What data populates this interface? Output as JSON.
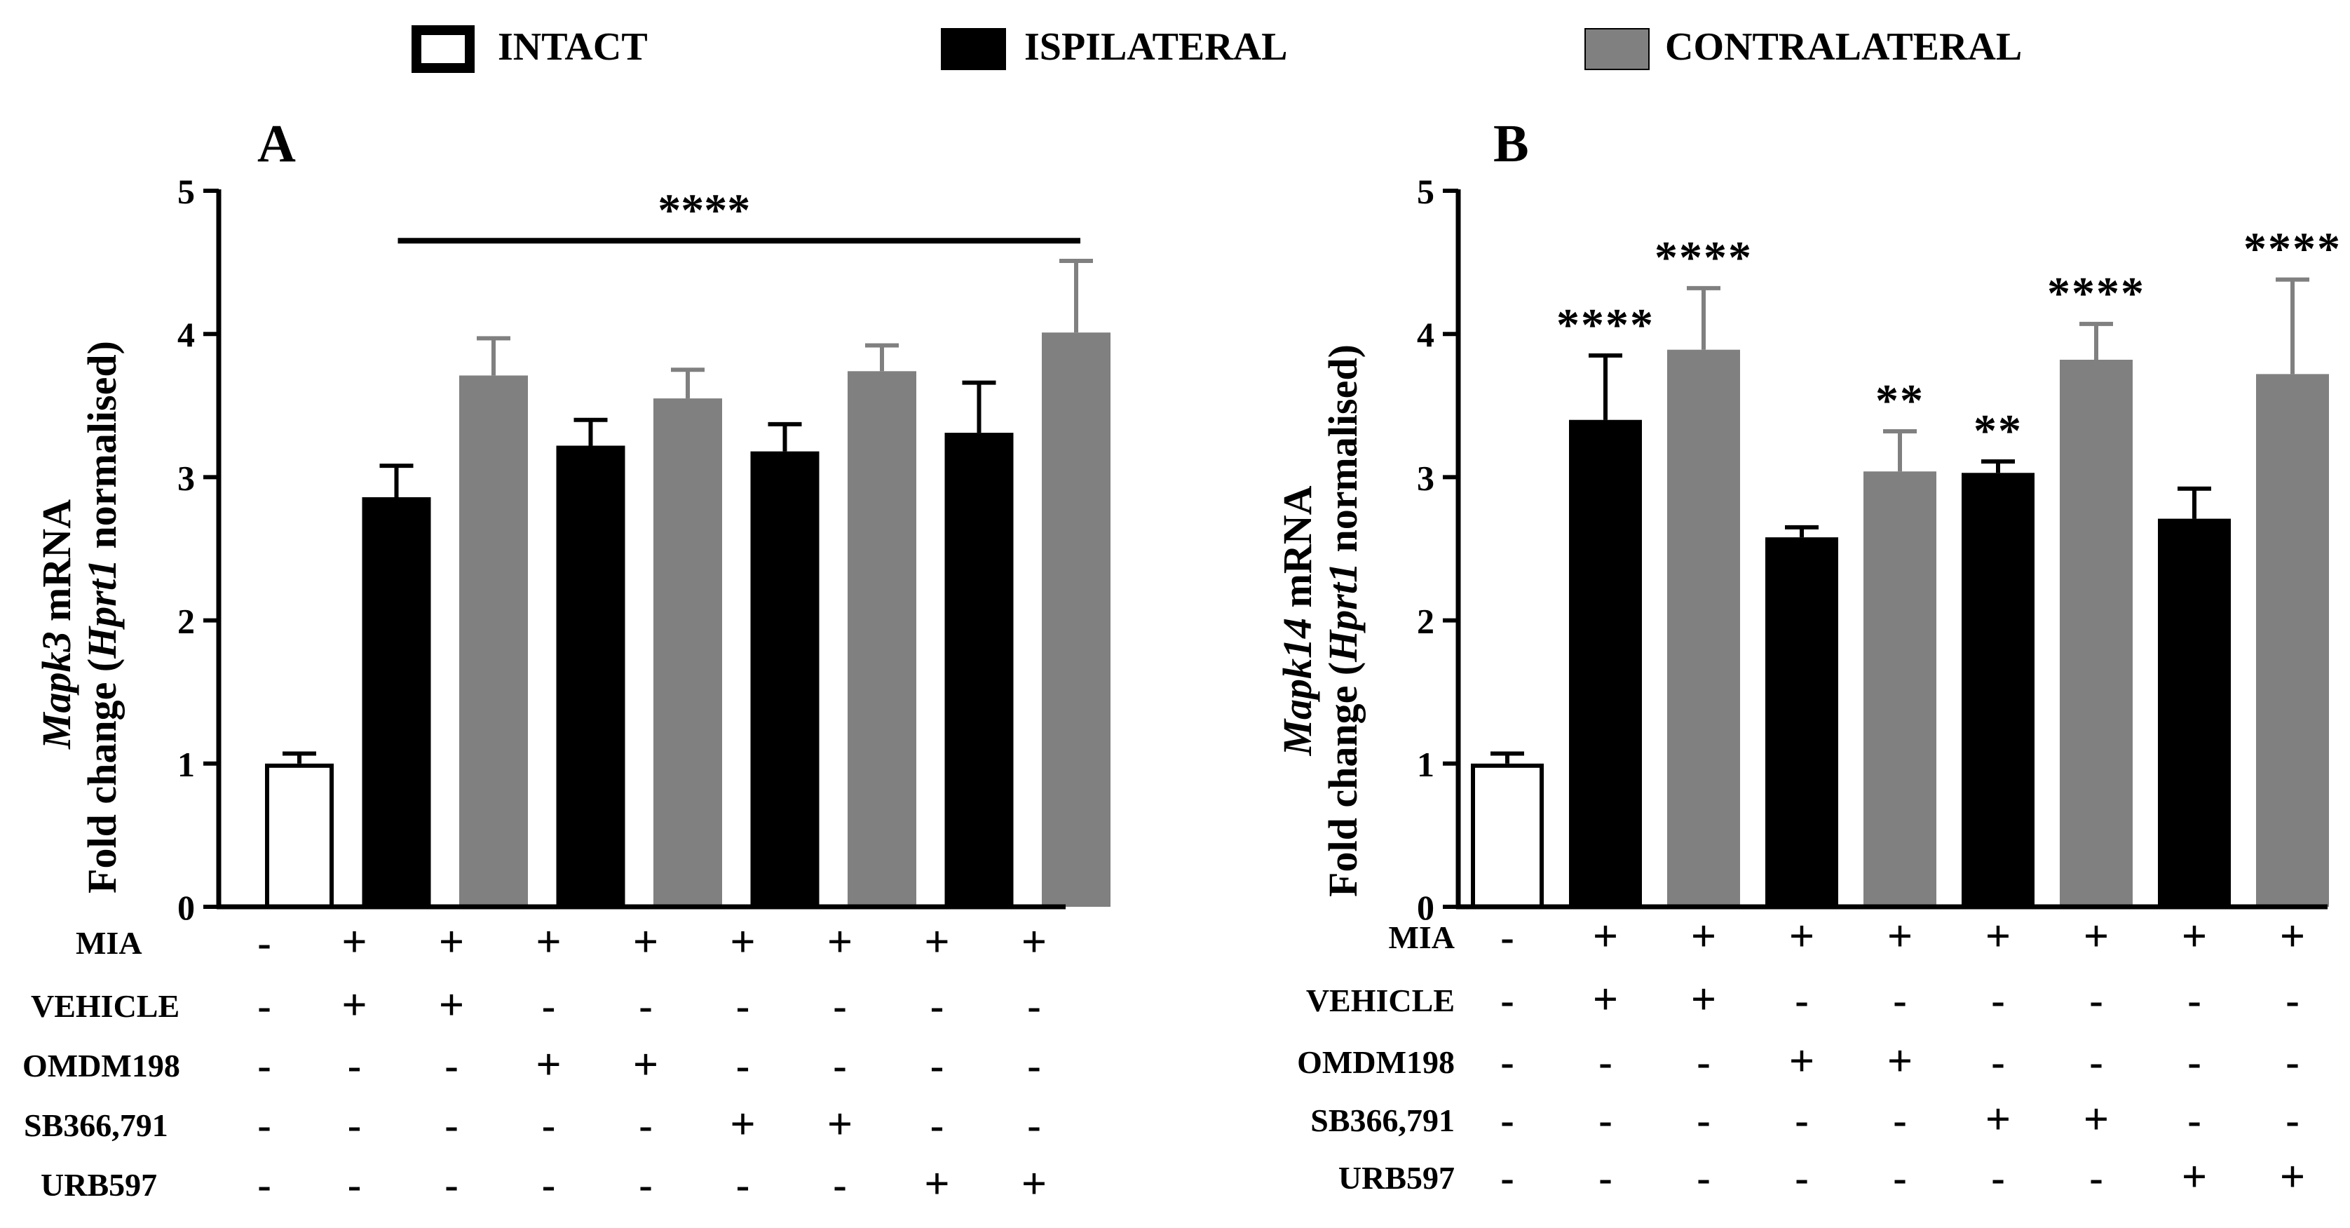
{
  "colors": {
    "intact": "#ffffff",
    "ipsilateral": "#000000",
    "contralateral": "#808080",
    "axis": "#000000"
  },
  "legend": [
    {
      "key": "intact",
      "label": "INTACT"
    },
    {
      "key": "ipsilateral",
      "label": "ISPILATERAL"
    },
    {
      "key": "contralateral",
      "label": "CONTRALATERAL"
    }
  ],
  "treatments": {
    "row_labels": [
      "MIA",
      "VEHICLE",
      "OMDM198",
      "SB366,791",
      "URB597"
    ],
    "matrix": [
      [
        "-",
        "+",
        "+",
        "+",
        "+",
        "+",
        "+",
        "+",
        "+"
      ],
      [
        "-",
        "+",
        "+",
        "-",
        "-",
        "-",
        "-",
        "-",
        "-"
      ],
      [
        "-",
        "-",
        "-",
        "+",
        "+",
        "-",
        "-",
        "-",
        "-"
      ],
      [
        "-",
        "-",
        "-",
        "-",
        "-",
        "+",
        "+",
        "-",
        "-"
      ],
      [
        "-",
        "-",
        "-",
        "-",
        "-",
        "-",
        "-",
        "+",
        "+"
      ]
    ]
  },
  "chart_data": [
    {
      "type": "bar",
      "panel": "A",
      "ylabel_gene": "Mapk3",
      "ylabel_suffix": " mRNA",
      "ylabel2_prefix": "Fold change (",
      "ylabel2_gene": "Hprt1",
      "ylabel2_suffix": " normalised)",
      "ylim": [
        0,
        5
      ],
      "yticks": [
        "0",
        "1",
        "2",
        "3",
        "4",
        "5"
      ],
      "groups": [
        "intact",
        "ipsilateral",
        "contralateral",
        "ipsilateral",
        "contralateral",
        "ipsilateral",
        "contralateral",
        "ipsilateral",
        "contralateral"
      ],
      "values": [
        1.0,
        2.86,
        3.71,
        3.22,
        3.55,
        3.18,
        3.74,
        3.31,
        4.01
      ],
      "errors": [
        0.07,
        0.22,
        0.26,
        0.18,
        0.2,
        0.19,
        0.18,
        0.35,
        0.5
      ],
      "bracket": {
        "from": 1,
        "to": 8,
        "y": 4.7,
        "label": "****"
      },
      "annotations": []
    },
    {
      "type": "bar",
      "panel": "B",
      "ylabel_gene": "Mapk14",
      "ylabel_suffix": " mRNA",
      "ylabel2_prefix": "Fold change (",
      "ylabel2_gene": "Hprt1",
      "ylabel2_suffix": " normalised)",
      "ylim": [
        0,
        5
      ],
      "yticks": [
        "0",
        "1",
        "2",
        "3",
        "4",
        "5"
      ],
      "groups": [
        "intact",
        "ipsilateral",
        "contralateral",
        "ipsilateral",
        "contralateral",
        "ipsilateral",
        "contralateral",
        "ipsilateral",
        "contralateral"
      ],
      "values": [
        1.0,
        3.4,
        3.89,
        2.58,
        3.04,
        3.03,
        3.82,
        2.71,
        3.72
      ],
      "errors": [
        0.07,
        0.45,
        0.43,
        0.07,
        0.28,
        0.08,
        0.25,
        0.21,
        0.66
      ],
      "bracket": null,
      "annotations": [
        "",
        "****",
        "****",
        "",
        "**",
        "**",
        "****",
        "",
        "****"
      ]
    }
  ]
}
